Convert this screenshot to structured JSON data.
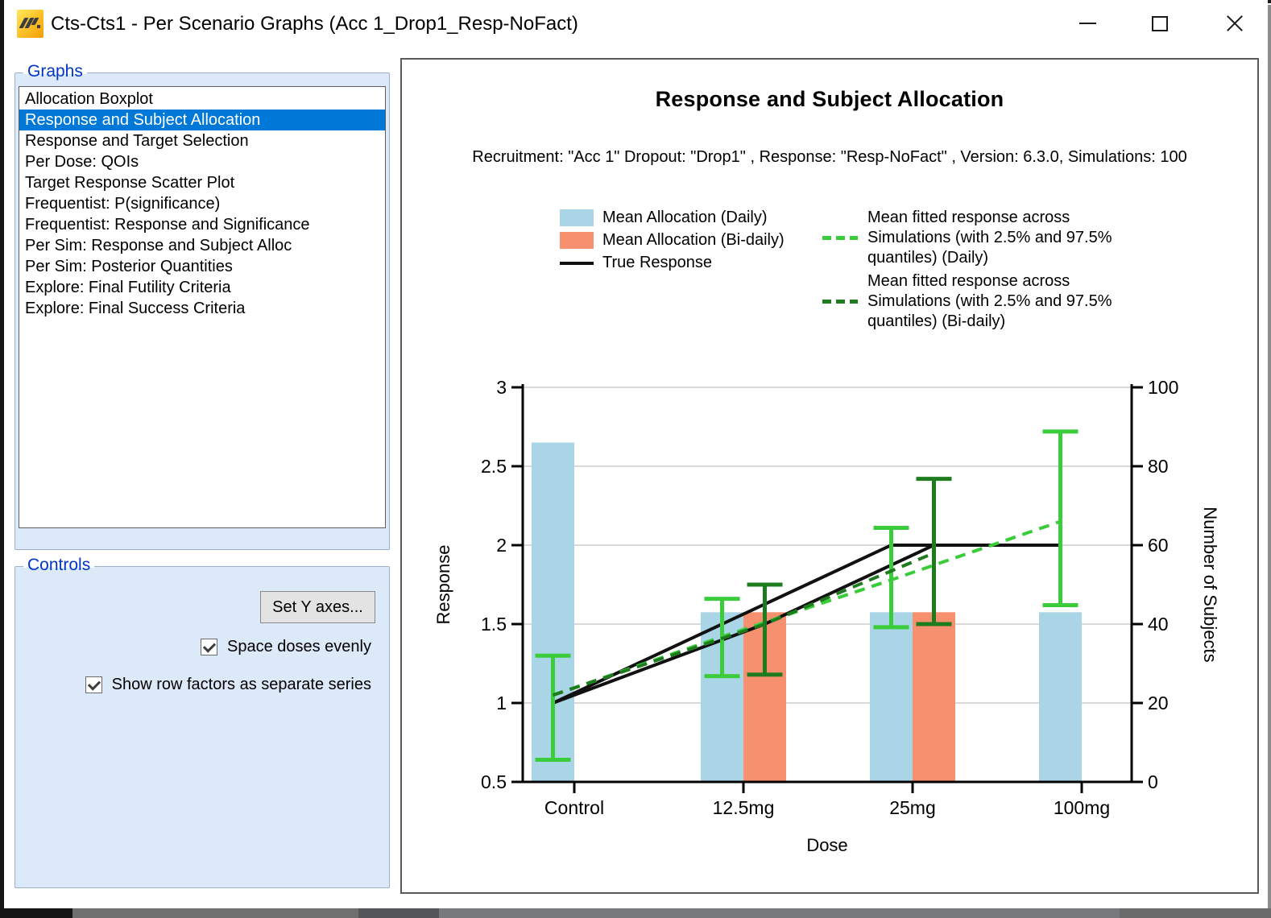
{
  "window": {
    "title": "Cts-Cts1 - Per Scenario Graphs (Acc 1_Drop1_Resp-NoFact)"
  },
  "sidebar": {
    "graphs_label": "Graphs",
    "items": [
      "Allocation Boxplot",
      "Response and Subject Allocation",
      "Response and Target Selection",
      "Per Dose: QOIs",
      "Target Response Scatter Plot",
      "Frequentist: P(significance)",
      "Frequentist: Response and Significance",
      "Per Sim: Response and Subject Alloc",
      "Per Sim: Posterior Quantities",
      "Explore: Final Futility Criteria",
      "Explore: Final Success Criteria"
    ],
    "selected_index": 1,
    "controls_label": "Controls",
    "set_y_axes_button": "Set Y axes...",
    "checkboxes": [
      {
        "label": "Space doses evenly",
        "checked": true
      },
      {
        "label": "Show row factors as separate series",
        "checked": true
      }
    ]
  },
  "chart_data": {
    "type": "bar+line+errorbar",
    "title": "Response and Subject Allocation",
    "subtitle": "Recruitment: \"Acc 1\" Dropout: \"Drop1\" , Response: \"Resp-NoFact\" , Version: 6.3.0, Simulations: 100",
    "categories": [
      "Control",
      "12.5mg",
      "25mg",
      "100mg"
    ],
    "xlabel": "Dose",
    "left_axis": {
      "label": "Response",
      "min": 0.5,
      "max": 3,
      "ticks": [
        3,
        2.5,
        2,
        1.5,
        1,
        0.5
      ]
    },
    "right_axis": {
      "label": "Number of Subjects",
      "min": 0,
      "max": 100,
      "ticks": [
        100,
        80,
        60,
        40,
        20,
        0
      ]
    },
    "grid": true,
    "legend_position": "top",
    "bars": [
      {
        "name": "Mean Allocation (Daily)",
        "axis": "right",
        "side": "daily",
        "color": "#aad5e6",
        "values": [
          86,
          43,
          43,
          43
        ]
      },
      {
        "name": "Mean Allocation (Bi-daily)",
        "axis": "right",
        "side": "bidaily",
        "color": "#f7906f",
        "values": [
          null,
          43,
          43,
          null
        ]
      }
    ],
    "true_response": {
      "name": "True Response",
      "axis": "left",
      "color": "#111111",
      "values": [
        1.0,
        1.5,
        2.0,
        2.0
      ]
    },
    "fitted": [
      {
        "name": "Mean fitted response across Simulations (with 2.5% and 97.5% quantiles) (Daily)",
        "side": "daily",
        "color": "#3bcc3b",
        "mean": [
          1.05,
          1.42,
          1.78,
          2.15
        ],
        "q2_5": [
          0.64,
          1.17,
          1.48,
          1.62
        ],
        "q97_5": [
          1.3,
          1.66,
          2.11,
          2.72
        ]
      },
      {
        "name": "Mean fitted response across Simulations (with 2.5% and 97.5% quantiles) (Bi-daily)",
        "side": "bidaily",
        "color": "#1e7c1e",
        "mean": [
          1.05,
          1.5,
          1.95,
          null
        ],
        "q2_5": [
          null,
          1.18,
          1.5,
          null
        ],
        "q97_5": [
          null,
          1.75,
          2.42,
          null
        ]
      }
    ]
  }
}
